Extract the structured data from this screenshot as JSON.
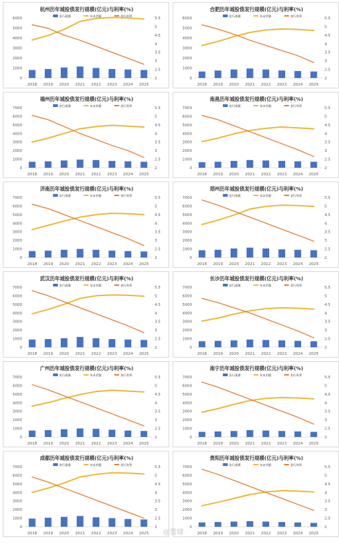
{
  "colors": {
    "bar": "#4472c4",
    "balance": "#ecb937",
    "rate": "#e47d32",
    "axis_text": "#595959",
    "grid": "#e6e6e6"
  },
  "legend_labels": [
    "发行规模",
    "年末余额",
    "发行利率"
  ],
  "watermark": "@雪球",
  "chart_data": [
    {
      "type": "bar",
      "title": "杭州历年城投债发行规模(亿元)与利率(%)",
      "categories": [
        "2018",
        "2019",
        "2020",
        "2021",
        "2022",
        "2023",
        "2024",
        "2025"
      ],
      "series": [
        {
          "name": "发行规模",
          "values": [
            800,
            900,
            1050,
            1150,
            1000,
            900,
            850,
            800
          ]
        },
        {
          "name": "年末余额",
          "values": [
            3800,
            4250,
            4850,
            5650,
            5950,
            6050,
            6000,
            5900
          ]
        },
        {
          "name": "发行利率",
          "values": [
            5.1,
            4.9,
            4.5,
            4.2,
            3.85,
            3.5,
            3.15,
            2.8
          ]
        }
      ],
      "ylim": [
        0,
        6000
      ],
      "y2lim": [
        2,
        5.5
      ],
      "yticks": [
        0,
        1000,
        2000,
        3000,
        4000,
        5000,
        6000
      ],
      "y2ticks": [
        2,
        2.5,
        3,
        3.5,
        4,
        4.5,
        5,
        5.5
      ]
    },
    {
      "type": "bar",
      "title": "合肥历年城投债发行规模(亿元)与利率(%)",
      "categories": [
        "2018",
        "2019",
        "2020",
        "2021",
        "2022",
        "2023",
        "2024",
        "2025"
      ],
      "series": [
        {
          "name": "发行规模",
          "values": [
            650,
            750,
            850,
            950,
            850,
            750,
            700,
            650
          ]
        },
        {
          "name": "年末余额",
          "values": [
            3250,
            3650,
            4150,
            4550,
            4800,
            4900,
            4850,
            4750
          ]
        },
        {
          "name": "发行利率",
          "values": [
            5.1,
            4.85,
            4.55,
            4.2,
            3.9,
            3.6,
            3.3,
            2.9
          ]
        }
      ],
      "ylim": [
        0,
        6000
      ],
      "y2lim": [
        2,
        5.5
      ],
      "yticks": [
        0,
        1000,
        2000,
        3000,
        4000,
        5000,
        6000
      ],
      "y2ticks": [
        2,
        2.5,
        3,
        3.5,
        4,
        4.5,
        5,
        5.5
      ]
    },
    {
      "type": "bar",
      "title": "福州历年城投债发行规模(亿元)与利率(%)",
      "categories": [
        "2018",
        "2019",
        "2020",
        "2021",
        "2022",
        "2023",
        "2024",
        "2025"
      ],
      "series": [
        {
          "name": "发行规模",
          "values": [
            700,
            750,
            850,
            950,
            900,
            800,
            750,
            700
          ]
        },
        {
          "name": "年末余额",
          "values": [
            3000,
            3450,
            4000,
            4550,
            4800,
            4950,
            4850,
            4750
          ]
        },
        {
          "name": "发行利率",
          "values": [
            5.05,
            4.8,
            4.4,
            4.0,
            3.65,
            3.3,
            3.0,
            2.6
          ]
        }
      ],
      "ylim": [
        0,
        7000
      ],
      "y2lim": [
        2,
        5.5
      ],
      "yticks": [
        0,
        1000,
        2000,
        3000,
        4000,
        5000,
        6000,
        7000
      ],
      "y2ticks": [
        2,
        2.5,
        3,
        3.5,
        4,
        4.5,
        5,
        5.5
      ]
    },
    {
      "type": "bar",
      "title": "南昌历年城投债发行规模(亿元)与利率(%)",
      "categories": [
        "2018",
        "2019",
        "2020",
        "2021",
        "2022",
        "2023",
        "2024",
        "2025"
      ],
      "series": [
        {
          "name": "发行规模",
          "values": [
            650,
            700,
            800,
            900,
            850,
            800,
            750,
            700
          ]
        },
        {
          "name": "年末余额",
          "values": [
            3050,
            3450,
            3950,
            4350,
            4600,
            4750,
            4650,
            4550
          ]
        },
        {
          "name": "发行利率",
          "values": [
            5.05,
            4.8,
            4.45,
            4.1,
            3.75,
            3.4,
            3.05,
            2.65
          ]
        }
      ],
      "ylim": [
        0,
        7000
      ],
      "y2lim": [
        2,
        5.5
      ],
      "yticks": [
        0,
        1000,
        2000,
        3000,
        4000,
        5000,
        6000,
        7000
      ],
      "y2ticks": [
        2,
        2.5,
        3,
        3.5,
        4,
        4.5,
        5,
        5.5
      ]
    },
    {
      "type": "bar",
      "title": "济南历年城投债发行规模(亿元)与利率(%)",
      "categories": [
        "2018",
        "2019",
        "2020",
        "2021",
        "2022",
        "2023",
        "2024",
        "2025"
      ],
      "series": [
        {
          "name": "发行规模",
          "values": [
            750,
            800,
            900,
            1000,
            900,
            800,
            750,
            700
          ]
        },
        {
          "name": "年末余额",
          "values": [
            3250,
            3750,
            4250,
            4700,
            5000,
            5150,
            5100,
            5000
          ]
        },
        {
          "name": "发行利率",
          "values": [
            5.1,
            4.85,
            4.5,
            4.15,
            3.8,
            3.45,
            3.1,
            2.7
          ]
        }
      ],
      "ylim": [
        0,
        7000
      ],
      "y2lim": [
        2,
        5.5
      ],
      "yticks": [
        0,
        1000,
        2000,
        3000,
        4000,
        5000,
        6000,
        7000
      ],
      "y2ticks": [
        2,
        2.5,
        3,
        3.5,
        4,
        4.5,
        5,
        5.5
      ]
    },
    {
      "type": "bar",
      "title": "郑州历年城投债发行规模(亿元)与利率(%)",
      "categories": [
        "2018",
        "2019",
        "2020",
        "2021",
        "2022",
        "2023",
        "2024",
        "2025"
      ],
      "series": [
        {
          "name": "发行规模",
          "values": [
            850,
            900,
            1050,
            1150,
            1050,
            950,
            900,
            850
          ]
        },
        {
          "name": "年末余额",
          "values": [
            3850,
            4350,
            4950,
            5650,
            5950,
            6100,
            6050,
            5950
          ]
        },
        {
          "name": "发行利率",
          "values": [
            5.35,
            5.05,
            4.7,
            4.35,
            4.0,
            3.65,
            3.3,
            2.95
          ]
        }
      ],
      "ylim": [
        0,
        7000
      ],
      "y2lim": [
        2,
        5.5
      ],
      "yticks": [
        0,
        1000,
        2000,
        3000,
        4000,
        5000,
        6000,
        7000
      ],
      "y2ticks": [
        2,
        2.5,
        3,
        3.5,
        4,
        4.5,
        5,
        5.5
      ]
    },
    {
      "type": "bar",
      "title": "武汉历年城投债发行规模(亿元)与利率(%)",
      "categories": [
        "2018",
        "2019",
        "2020",
        "2021",
        "2022",
        "2023",
        "2024",
        "2025"
      ],
      "series": [
        {
          "name": "发行规模",
          "values": [
            900,
            950,
            1050,
            1200,
            1050,
            950,
            900,
            850
          ]
        },
        {
          "name": "年末余额",
          "values": [
            3900,
            4400,
            5000,
            5700,
            6000,
            6100,
            6050,
            5950
          ]
        },
        {
          "name": "发行利率",
          "values": [
            5.3,
            5.0,
            4.65,
            4.3,
            3.95,
            3.6,
            3.25,
            2.85
          ]
        }
      ],
      "ylim": [
        0,
        7000
      ],
      "y2lim": [
        2,
        5.5
      ],
      "yticks": [
        0,
        1000,
        2000,
        3000,
        4000,
        5000,
        6000,
        7000
      ],
      "y2ticks": [
        2,
        2.5,
        3,
        3.5,
        4,
        4.5,
        5,
        5.5
      ]
    },
    {
      "type": "bar",
      "title": "长沙历年城投债发行规模(亿元)与利率(%)",
      "categories": [
        "2018",
        "2019",
        "2020",
        "2021",
        "2022",
        "2023",
        "2024",
        "2025"
      ],
      "series": [
        {
          "name": "发行规模",
          "values": [
            700,
            750,
            800,
            900,
            850,
            800,
            750,
            700
          ]
        },
        {
          "name": "年末余额",
          "values": [
            3050,
            3400,
            3850,
            4250,
            4500,
            4600,
            4550,
            4450
          ]
        },
        {
          "name": "发行利率",
          "values": [
            4.85,
            4.6,
            4.3,
            4.0,
            3.65,
            3.3,
            2.95,
            2.55
          ]
        }
      ],
      "ylim": [
        0,
        7000
      ],
      "y2lim": [
        2,
        5.5
      ],
      "yticks": [
        0,
        1000,
        2000,
        3000,
        4000,
        5000,
        6000,
        7000
      ],
      "y2ticks": [
        2,
        2.5,
        3,
        3.5,
        4,
        4.5,
        5,
        5.5
      ]
    },
    {
      "type": "bar",
      "title": "广州历年城投债发行规模(亿元)与利率(%)",
      "categories": [
        "2018",
        "2019",
        "2020",
        "2021",
        "2022",
        "2023",
        "2024",
        "2025"
      ],
      "series": [
        {
          "name": "发行规模",
          "values": [
            750,
            800,
            900,
            1000,
            950,
            850,
            750,
            700
          ]
        },
        {
          "name": "年末余额",
          "values": [
            3600,
            4000,
            4500,
            4950,
            5300,
            5450,
            5350,
            5250
          ]
        },
        {
          "name": "发行利率",
          "values": [
            5.05,
            4.75,
            4.4,
            4.05,
            3.7,
            3.35,
            3.0,
            2.65
          ]
        }
      ],
      "ylim": [
        0,
        7000
      ],
      "y2lim": [
        2,
        5.5
      ],
      "yticks": [
        0,
        1000,
        2000,
        3000,
        4000,
        5000,
        6000,
        7000
      ],
      "y2ticks": [
        2,
        2.5,
        3,
        3.5,
        4,
        4.5,
        5,
        5.5
      ]
    },
    {
      "type": "bar",
      "title": "南宁历年城投债发行规模(亿元)与利率(%)",
      "categories": [
        "2018",
        "2019",
        "2020",
        "2021",
        "2022",
        "2023",
        "2024",
        "2025"
      ],
      "series": [
        {
          "name": "发行规模",
          "values": [
            600,
            650,
            700,
            800,
            750,
            700,
            650,
            600
          ]
        },
        {
          "name": "年末余额",
          "values": [
            2900,
            3300,
            3800,
            4250,
            4500,
            4600,
            4550,
            4450
          ]
        },
        {
          "name": "发行利率",
          "values": [
            5.2,
            4.9,
            4.55,
            4.2,
            3.85,
            3.5,
            3.15,
            2.75
          ]
        }
      ],
      "ylim": [
        0,
        7000
      ],
      "y2lim": [
        2,
        5.5
      ],
      "yticks": [
        0,
        1000,
        2000,
        3000,
        4000,
        5000,
        6000,
        7000
      ],
      "y2ticks": [
        2,
        2.5,
        3,
        3.5,
        4,
        4.5,
        5,
        5.5
      ]
    },
    {
      "type": "bar",
      "title": "成都历年城投债发行规模(亿元)与利率(%)",
      "categories": [
        "2018",
        "2019",
        "2020",
        "2021",
        "2022",
        "2023",
        "2024",
        "2025"
      ],
      "series": [
        {
          "name": "发行规模",
          "values": [
            950,
            1050,
            1150,
            1250,
            1100,
            1000,
            900,
            850
          ]
        },
        {
          "name": "年末余额",
          "values": [
            4000,
            4500,
            5100,
            5800,
            6100,
            6300,
            6250,
            6150
          ]
        },
        {
          "name": "发行利率",
          "values": [
            4.9,
            4.6,
            4.25,
            3.9,
            3.55,
            3.2,
            2.85,
            2.5
          ]
        }
      ],
      "ylim": [
        0,
        7000
      ],
      "y2lim": [
        2,
        5.5
      ],
      "yticks": [
        0,
        1000,
        2000,
        3000,
        4000,
        5000,
        6000,
        7000
      ],
      "y2ticks": [
        2,
        2.5,
        3,
        3.5,
        4,
        4.5,
        5,
        5.5
      ]
    },
    {
      "type": "bar",
      "title": "贵阳历年城投债发行规模(亿元)与利率(%)",
      "categories": [
        "2018",
        "2019",
        "2020",
        "2021",
        "2022",
        "2023",
        "2024",
        "2025"
      ],
      "series": [
        {
          "name": "发行规模",
          "values": [
            500,
            550,
            600,
            650,
            600,
            550,
            500,
            450
          ]
        },
        {
          "name": "年末余额",
          "values": [
            2450,
            2850,
            3300,
            3750,
            4050,
            4200,
            4150,
            4050
          ]
        },
        {
          "name": "发行利率",
          "values": [
            5.35,
            5.05,
            4.7,
            4.35,
            4.0,
            3.65,
            3.3,
            2.95
          ]
        }
      ],
      "ylim": [
        0,
        7000
      ],
      "y2lim": [
        2,
        5.5
      ],
      "yticks": [
        0,
        1000,
        2000,
        3000,
        4000,
        5000,
        6000,
        7000
      ],
      "y2ticks": [
        2,
        2.5,
        3,
        3.5,
        4,
        4.5,
        5,
        5.5
      ]
    }
  ]
}
